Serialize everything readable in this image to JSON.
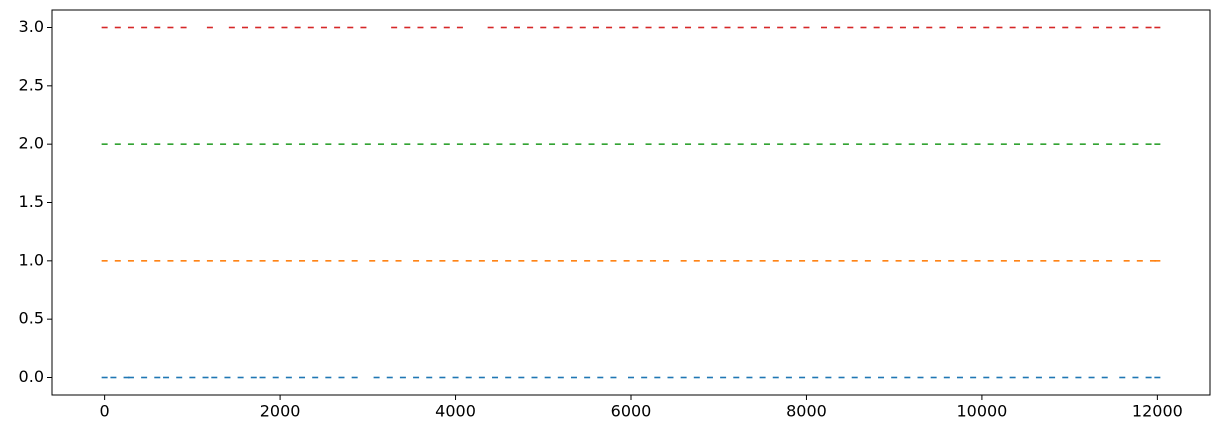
{
  "chart_data": {
    "type": "scatter",
    "xlim": [
      -600,
      12600
    ],
    "ylim": [
      -0.15,
      3.15
    ],
    "xticks": [
      0,
      2000,
      4000,
      6000,
      8000,
      10000,
      12000
    ],
    "yticks": [
      {
        "value": 0,
        "label": "0.0"
      },
      {
        "value": 0.5,
        "label": "0.5"
      },
      {
        "value": 1,
        "label": "1.0"
      },
      {
        "value": 1.5,
        "label": "1.5"
      },
      {
        "value": 2,
        "label": "2.0"
      },
      {
        "value": 2.5,
        "label": "2.5"
      },
      {
        "value": 3,
        "label": "3.0"
      }
    ],
    "series": [
      {
        "color": "#1f77b4",
        "x": [
          0,
          100,
          250,
          300,
          450,
          600,
          700,
          850,
          1000,
          1150,
          1250,
          1400,
          1550,
          1700,
          1800,
          1950,
          2100,
          2250,
          2400,
          2550,
          2700,
          2850,
          3100,
          3250,
          3400,
          3550,
          3700,
          3850,
          4000,
          4150,
          4300,
          4450,
          4600,
          4750,
          4900,
          5050,
          5200,
          5350,
          5500,
          5650,
          5800,
          6000,
          6150,
          6300,
          6450,
          6600,
          6750,
          6900,
          7050,
          7200,
          7350,
          7500,
          7650,
          7800,
          7950,
          8100,
          8250,
          8400,
          8550,
          8700,
          8850,
          9000,
          9150,
          9300,
          9450,
          9600,
          9750,
          9900,
          10050,
          10200,
          10350,
          10500,
          10650,
          10800,
          10950,
          11100,
          11250,
          11400,
          11600,
          11750,
          11900,
          12000
        ],
        "values": [
          0,
          0,
          0,
          0,
          0,
          0,
          0,
          0,
          0,
          0,
          0,
          0,
          0,
          0,
          0,
          0,
          0,
          0,
          0,
          0,
          0,
          0,
          0,
          0,
          0,
          0,
          0,
          0,
          0,
          0,
          0,
          0,
          0,
          0,
          0,
          0,
          0,
          0,
          0,
          0,
          0,
          0,
          0,
          0,
          0,
          0,
          0,
          0,
          0,
          0,
          0,
          0,
          0,
          0,
          0,
          0,
          0,
          0,
          0,
          0,
          0,
          0,
          0,
          0,
          0,
          0,
          0,
          0,
          0,
          0,
          0,
          0,
          0,
          0,
          0,
          0,
          0,
          0,
          0,
          0,
          0,
          0
        ]
      },
      {
        "color": "#ff7f0e",
        "x": [
          0,
          150,
          300,
          450,
          600,
          750,
          900,
          1050,
          1200,
          1350,
          1500,
          1650,
          1800,
          1950,
          2100,
          2250,
          2400,
          2550,
          2700,
          2850,
          3050,
          3200,
          3350,
          3550,
          3700,
          3850,
          4000,
          4150,
          4300,
          4450,
          4600,
          4750,
          4900,
          5050,
          5200,
          5350,
          5500,
          5650,
          5800,
          5950,
          6100,
          6250,
          6400,
          6600,
          6750,
          6900,
          7050,
          7200,
          7350,
          7500,
          7650,
          7800,
          7950,
          8100,
          8250,
          8400,
          8550,
          8700,
          8900,
          9050,
          9200,
          9350,
          9500,
          9650,
          9800,
          9950,
          10100,
          10250,
          10400,
          10550,
          10700,
          10850,
          11000,
          11150,
          11300,
          11450,
          11650,
          11800,
          11950,
          12000
        ],
        "values": [
          1,
          1,
          1,
          1,
          1,
          1,
          1,
          1,
          1,
          1,
          1,
          1,
          1,
          1,
          1,
          1,
          1,
          1,
          1,
          1,
          1,
          1,
          1,
          1,
          1,
          1,
          1,
          1,
          1,
          1,
          1,
          1,
          1,
          1,
          1,
          1,
          1,
          1,
          1,
          1,
          1,
          1,
          1,
          1,
          1,
          1,
          1,
          1,
          1,
          1,
          1,
          1,
          1,
          1,
          1,
          1,
          1,
          1,
          1,
          1,
          1,
          1,
          1,
          1,
          1,
          1,
          1,
          1,
          1,
          1,
          1,
          1,
          1,
          1,
          1,
          1,
          1,
          1,
          1,
          1
        ]
      },
      {
        "color": "#2ca02c",
        "x": [
          0,
          150,
          300,
          450,
          600,
          750,
          900,
          1050,
          1200,
          1350,
          1500,
          1650,
          1800,
          1950,
          2100,
          2250,
          2400,
          2550,
          2700,
          2850,
          3000,
          3150,
          3300,
          3450,
          3600,
          3750,
          3900,
          4050,
          4200,
          4350,
          4500,
          4650,
          4800,
          4950,
          5100,
          5250,
          5400,
          5550,
          5700,
          5850,
          6000,
          6200,
          6350,
          6500,
          6650,
          6800,
          6950,
          7100,
          7250,
          7400,
          7550,
          7700,
          7850,
          8000,
          8150,
          8300,
          8450,
          8600,
          8750,
          8900,
          9050,
          9200,
          9350,
          9500,
          9650,
          9800,
          9950,
          10100,
          10250,
          10400,
          10550,
          10700,
          10850,
          11000,
          11150,
          11300,
          11450,
          11600,
          11750,
          11900,
          12000
        ],
        "values": [
          2,
          2,
          2,
          2,
          2,
          2,
          2,
          2,
          2,
          2,
          2,
          2,
          2,
          2,
          2,
          2,
          2,
          2,
          2,
          2,
          2,
          2,
          2,
          2,
          2,
          2,
          2,
          2,
          2,
          2,
          2,
          2,
          2,
          2,
          2,
          2,
          2,
          2,
          2,
          2,
          2,
          2,
          2,
          2,
          2,
          2,
          2,
          2,
          2,
          2,
          2,
          2,
          2,
          2,
          2,
          2,
          2,
          2,
          2,
          2,
          2,
          2,
          2,
          2,
          2,
          2,
          2,
          2,
          2,
          2,
          2,
          2,
          2,
          2,
          2,
          2,
          2,
          2,
          2,
          2,
          2
        ]
      },
      {
        "color": "#d62728",
        "x": [
          0,
          150,
          300,
          450,
          600,
          750,
          900,
          1200,
          1450,
          1600,
          1750,
          1900,
          2050,
          2200,
          2350,
          2500,
          2650,
          2800,
          2950,
          3300,
          3450,
          3600,
          3750,
          3900,
          4050,
          4400,
          4550,
          4700,
          4850,
          5000,
          5150,
          5300,
          5450,
          5600,
          5750,
          5900,
          6050,
          6200,
          6350,
          6500,
          6650,
          6800,
          6950,
          7100,
          7250,
          7400,
          7550,
          7700,
          7850,
          8000,
          8200,
          8350,
          8500,
          8650,
          8800,
          8950,
          9100,
          9250,
          9400,
          9550,
          9750,
          9900,
          10050,
          10200,
          10350,
          10500,
          10650,
          10800,
          10950,
          11100,
          11300,
          11450,
          11600,
          11750,
          11900,
          12000
        ],
        "values": [
          3,
          3,
          3,
          3,
          3,
          3,
          3,
          3,
          3,
          3,
          3,
          3,
          3,
          3,
          3,
          3,
          3,
          3,
          3,
          3,
          3,
          3,
          3,
          3,
          3,
          3,
          3,
          3,
          3,
          3,
          3,
          3,
          3,
          3,
          3,
          3,
          3,
          3,
          3,
          3,
          3,
          3,
          3,
          3,
          3,
          3,
          3,
          3,
          3,
          3,
          3,
          3,
          3,
          3,
          3,
          3,
          3,
          3,
          3,
          3,
          3,
          3,
          3,
          3,
          3,
          3,
          3,
          3,
          3,
          3,
          3,
          3,
          3,
          3,
          3,
          3
        ]
      }
    ]
  }
}
